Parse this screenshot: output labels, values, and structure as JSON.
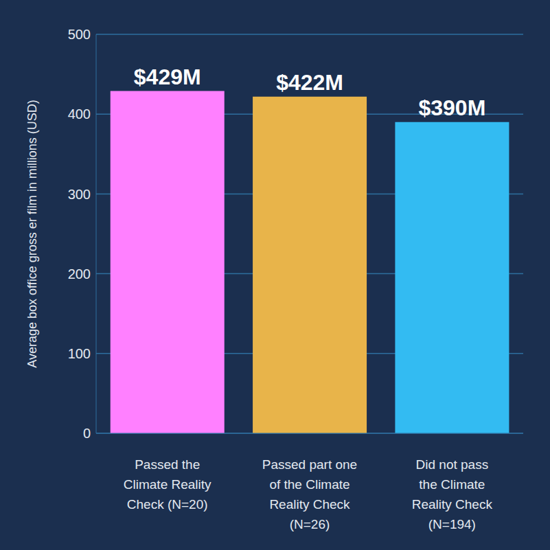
{
  "chart_data": {
    "type": "bar",
    "y_label": "Average box office gross er film in millions (USD)",
    "categories": [
      "Passed the Climate Reality Check (N=20)",
      "Passed part one of the Climate Reality Check (N=26)",
      "Did not pass the Climate Reality Check (N=194)"
    ],
    "values": [
      429,
      422,
      390
    ],
    "value_labels": [
      "$429M",
      "$422M",
      "$390M"
    ],
    "colors": [
      "#ff80ff",
      "#e8b44a",
      "#33bbf2"
    ],
    "ylim": [
      0,
      500
    ],
    "yticks": [
      0,
      100,
      200,
      300,
      400,
      500
    ],
    "grid": true,
    "data_labels": true
  }
}
